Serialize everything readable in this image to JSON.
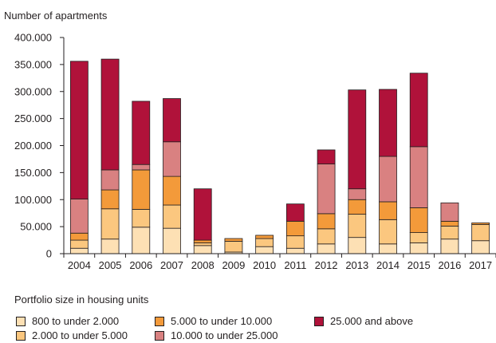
{
  "chart_data": {
    "type": "bar",
    "stacked": true,
    "ylabel": "Number of apartments",
    "xlabel": "",
    "ylim": [
      0,
      400000
    ],
    "yticks": [
      "0",
      "50.000",
      "100.000",
      "150.000",
      "200.000",
      "250.000",
      "300.000",
      "350.000",
      "400.000"
    ],
    "ytick_values": [
      0,
      50000,
      100000,
      150000,
      200000,
      250000,
      300000,
      350000,
      400000
    ],
    "grid": false,
    "categories": [
      "2004",
      "2005",
      "2006",
      "2007",
      "2008",
      "2009",
      "2010",
      "2011",
      "2012",
      "2013",
      "2014",
      "2015",
      "2016",
      "2017"
    ],
    "legend_title": "Portfolio size in housing units",
    "legend_position": "bottom",
    "series": [
      {
        "name": "800 to under 2.000",
        "color": "#fde0b4",
        "values": [
          10000,
          27000,
          49000,
          47000,
          15000,
          3000,
          13000,
          10000,
          18000,
          30000,
          18000,
          20000,
          27000,
          24000
        ]
      },
      {
        "name": "2.000 to under 5.000",
        "color": "#fbc77f",
        "values": [
          15000,
          56000,
          33000,
          43000,
          5000,
          20000,
          15000,
          23000,
          28000,
          43000,
          45000,
          19000,
          24000,
          30000
        ]
      },
      {
        "name": "5.000 to under 10.000",
        "color": "#f39a3a",
        "values": [
          13000,
          35000,
          73000,
          53000,
          5000,
          5000,
          6000,
          27000,
          28000,
          27000,
          33000,
          46000,
          9000,
          3000
        ]
      },
      {
        "name": "10.000 to under 25.000",
        "color": "#d98181",
        "values": [
          63000,
          37000,
          10000,
          64000,
          0,
          0,
          0,
          0,
          92000,
          20000,
          84000,
          113000,
          34000,
          0
        ]
      },
      {
        "name": "25.000 and above",
        "color": "#b0123a",
        "values": [
          255000,
          205000,
          117000,
          80000,
          95000,
          0,
          0,
          32000,
          26000,
          183000,
          124000,
          136000,
          0,
          0
        ]
      }
    ]
  }
}
